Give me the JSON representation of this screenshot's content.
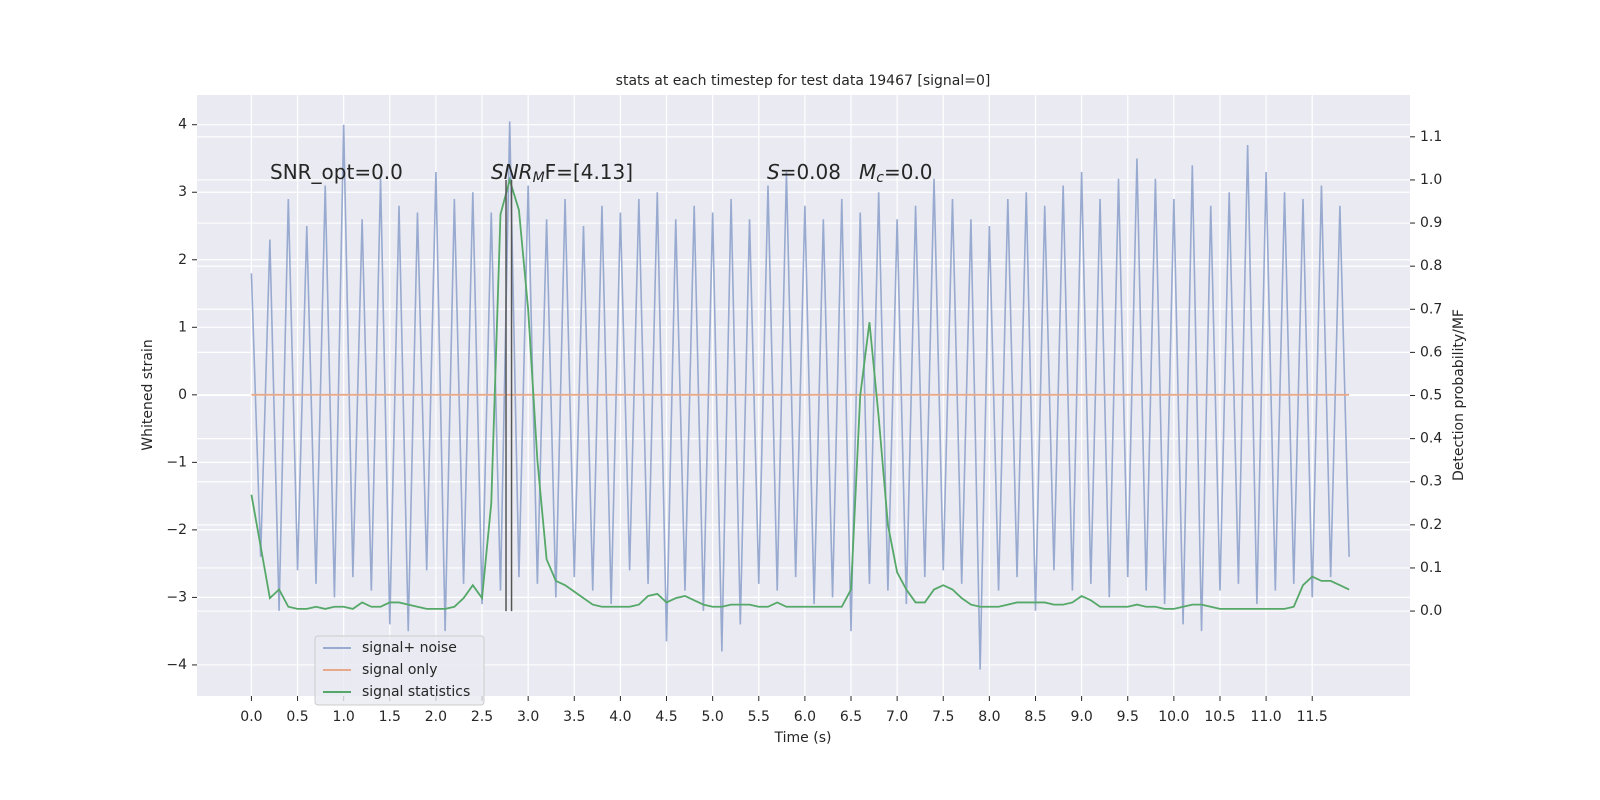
{
  "chart_data": {
    "type": "line",
    "title": "stats at each timestep for test data 19467 [signal=0]",
    "xlabel": "Time (s)",
    "ylabel": "Whitened strain",
    "y2label": "Detection probability/MF",
    "x": [
      0.0,
      0.1,
      0.2,
      0.3,
      0.4,
      0.5,
      0.6,
      0.7,
      0.8,
      0.9,
      1.0,
      1.1,
      1.2,
      1.3,
      1.4,
      1.5,
      1.6,
      1.7,
      1.8,
      1.9,
      2.0,
      2.1,
      2.2,
      2.3,
      2.4,
      2.5,
      2.6,
      2.7,
      2.8,
      2.9,
      3.0,
      3.1,
      3.2,
      3.3,
      3.4,
      3.5,
      3.6,
      3.7,
      3.8,
      3.9,
      4.0,
      4.1,
      4.2,
      4.3,
      4.4,
      4.5,
      4.6,
      4.7,
      4.8,
      4.9,
      5.0,
      5.1,
      5.2,
      5.3,
      5.4,
      5.5,
      5.6,
      5.7,
      5.8,
      5.9,
      6.0,
      6.1,
      6.2,
      6.3,
      6.4,
      6.5,
      6.6,
      6.7,
      6.8,
      6.9,
      7.0,
      7.1,
      7.2,
      7.3,
      7.4,
      7.5,
      7.6,
      7.7,
      7.8,
      7.9,
      8.0,
      8.1,
      8.2,
      8.3,
      8.4,
      8.5,
      8.6,
      8.7,
      8.8,
      8.9,
      9.0,
      9.1,
      9.2,
      9.3,
      9.4,
      9.5,
      9.6,
      9.7,
      9.8,
      9.9,
      10.0,
      10.1,
      10.2,
      10.3,
      10.4,
      10.5,
      10.6,
      10.7,
      10.8,
      10.9,
      11.0,
      11.1,
      11.2,
      11.3,
      11.4,
      11.5,
      11.6,
      11.7,
      11.8,
      11.9
    ],
    "series": [
      {
        "name": "signal+ noise",
        "color": "#98aacf",
        "axis": "y",
        "values": [
          1.8,
          -2.4,
          2.3,
          -3.2,
          2.9,
          -2.6,
          2.5,
          -2.8,
          3.1,
          -3.0,
          4.0,
          -2.7,
          2.6,
          -2.9,
          3.2,
          -3.4,
          2.8,
          -3.5,
          2.7,
          -2.6,
          3.3,
          -3.5,
          2.9,
          -2.8,
          3.0,
          -3.1,
          2.7,
          -2.9,
          4.05,
          -2.7,
          3.1,
          -2.8,
          2.6,
          -3.0,
          2.9,
          -2.7,
          2.5,
          -2.9,
          2.8,
          -3.1,
          2.7,
          -2.6,
          2.9,
          -2.8,
          3.0,
          -3.65,
          2.6,
          -2.9,
          2.8,
          -3.2,
          2.7,
          -3.8,
          2.9,
          -3.4,
          2.6,
          -2.8,
          3.1,
          -2.9,
          3.3,
          -2.7,
          2.8,
          -3.1,
          2.6,
          -3.0,
          2.9,
          -3.5,
          2.7,
          -2.8,
          3.0,
          -2.9,
          2.6,
          -3.1,
          2.8,
          -2.7,
          3.2,
          -2.6,
          2.9,
          -2.8,
          2.6,
          -4.07,
          2.5,
          -2.9,
          2.9,
          -2.7,
          3.0,
          -3.2,
          2.8,
          -2.6,
          3.1,
          -2.9,
          3.3,
          -2.8,
          2.9,
          -3.0,
          3.2,
          -2.7,
          3.5,
          -2.9,
          3.2,
          -3.1,
          2.9,
          -3.4,
          3.4,
          -3.5,
          2.8,
          -2.9,
          3.0,
          -2.8,
          3.7,
          -3.1,
          3.3,
          -2.9,
          3.0,
          -2.8,
          2.9,
          -3.0,
          3.1,
          -2.7,
          2.8,
          -2.4
        ]
      },
      {
        "name": "signal only",
        "color": "#e8a98a",
        "axis": "y",
        "values": [
          0,
          0,
          0,
          0,
          0,
          0,
          0,
          0,
          0,
          0,
          0,
          0,
          0,
          0,
          0,
          0,
          0,
          0,
          0,
          0,
          0,
          0,
          0,
          0,
          0,
          0,
          0,
          0,
          0,
          0,
          0,
          0,
          0,
          0,
          0,
          0,
          0,
          0,
          0,
          0,
          0,
          0,
          0,
          0,
          0,
          0,
          0,
          0,
          0,
          0,
          0,
          0,
          0,
          0,
          0,
          0,
          0,
          0,
          0,
          0,
          0,
          0,
          0,
          0,
          0,
          0,
          0,
          0,
          0,
          0,
          0,
          0,
          0,
          0,
          0,
          0,
          0,
          0,
          0,
          0,
          0,
          0,
          0,
          0,
          0,
          0,
          0,
          0,
          0,
          0,
          0,
          0,
          0,
          0,
          0,
          0,
          0,
          0,
          0,
          0,
          0,
          0,
          0,
          0,
          0,
          0,
          0,
          0,
          0,
          0,
          0,
          0,
          0,
          0,
          0,
          0,
          0,
          0,
          0,
          0
        ]
      },
      {
        "name": "signal statistics",
        "color": "#55a868",
        "axis": "y2",
        "values": [
          0.27,
          0.15,
          0.03,
          0.05,
          0.01,
          0.005,
          0.005,
          0.01,
          0.005,
          0.01,
          0.01,
          0.005,
          0.02,
          0.01,
          0.01,
          0.02,
          0.02,
          0.015,
          0.01,
          0.005,
          0.005,
          0.005,
          0.01,
          0.03,
          0.06,
          0.03,
          0.25,
          0.92,
          1.0,
          0.93,
          0.7,
          0.35,
          0.12,
          0.07,
          0.06,
          0.045,
          0.03,
          0.015,
          0.01,
          0.01,
          0.01,
          0.01,
          0.015,
          0.035,
          0.04,
          0.02,
          0.03,
          0.035,
          0.025,
          0.015,
          0.01,
          0.01,
          0.015,
          0.015,
          0.015,
          0.01,
          0.01,
          0.02,
          0.01,
          0.01,
          0.01,
          0.01,
          0.01,
          0.01,
          0.01,
          0.05,
          0.5,
          0.67,
          0.45,
          0.2,
          0.09,
          0.05,
          0.02,
          0.02,
          0.05,
          0.06,
          0.05,
          0.03,
          0.015,
          0.01,
          0.01,
          0.01,
          0.015,
          0.02,
          0.02,
          0.02,
          0.02,
          0.015,
          0.015,
          0.02,
          0.035,
          0.025,
          0.01,
          0.01,
          0.01,
          0.01,
          0.015,
          0.01,
          0.01,
          0.005,
          0.005,
          0.01,
          0.015,
          0.015,
          0.01,
          0.005,
          0.005,
          0.005,
          0.005,
          0.005,
          0.005,
          0.005,
          0.005,
          0.01,
          0.06,
          0.08,
          0.07,
          0.07,
          0.06,
          0.05
        ]
      }
    ],
    "vlines": {
      "x": [
        2.76,
        2.82
      ],
      "y2range": [
        0,
        1
      ],
      "color": "#555555"
    },
    "annotations": [
      [
        {
          "text": "SNR_opt=0.0"
        }
      ],
      [
        {
          "text": "SNR",
          "style": "italic"
        },
        {
          "text": "M",
          "style": "italic-sub"
        },
        {
          "text": "F=[4.13]"
        }
      ],
      [
        {
          "text": "S",
          "style": "italic"
        },
        {
          "text": "=0.08"
        }
      ],
      [
        {
          "text": "M",
          "style": "italic"
        },
        {
          "text": "c",
          "style": "italic-sub"
        },
        {
          "text": "=0.0"
        }
      ]
    ],
    "xlim": [
      -0.59,
      12.56
    ],
    "xticks": [
      {
        "value": 0,
        "label": "0.0"
      },
      0.5,
      {
        "value": 1,
        "label": "1.0"
      },
      1.5,
      {
        "value": 2,
        "label": "2.0"
      },
      2.5,
      {
        "value": 3,
        "label": "3.0"
      },
      3.5,
      {
        "value": 4,
        "label": "4.0"
      },
      4.5,
      {
        "value": 5,
        "label": "5.0"
      },
      5.5,
      {
        "value": 6,
        "label": "6.0"
      },
      6.5,
      {
        "value": 7,
        "label": "7.0"
      },
      7.5,
      {
        "value": 8,
        "label": "8.0"
      },
      8.5,
      {
        "value": 9,
        "label": "9.0"
      },
      9.5,
      {
        "value": 10,
        "label": "10.0"
      },
      10.5,
      {
        "value": 11,
        "label": "11.0"
      },
      11.5
    ],
    "ylim": [
      -4.46,
      4.44
    ],
    "yticks": [
      {
        "value": -4,
        "label": "−4"
      },
      {
        "value": -3,
        "label": "−3"
      },
      {
        "value": -2,
        "label": "−2"
      },
      {
        "value": -1,
        "label": "−1"
      },
      0,
      1,
      2,
      3,
      4
    ],
    "y2lim": [
      -0.197,
      1.197
    ],
    "y2ticks": [
      {
        "value": 0,
        "label": "0.0"
      },
      0.1,
      0.2,
      0.3,
      0.4,
      0.5,
      0.6,
      0.7,
      0.8,
      0.9,
      {
        "value": 1,
        "label": "1.0"
      },
      1.1
    ],
    "grid": true,
    "legend": "lower left"
  }
}
